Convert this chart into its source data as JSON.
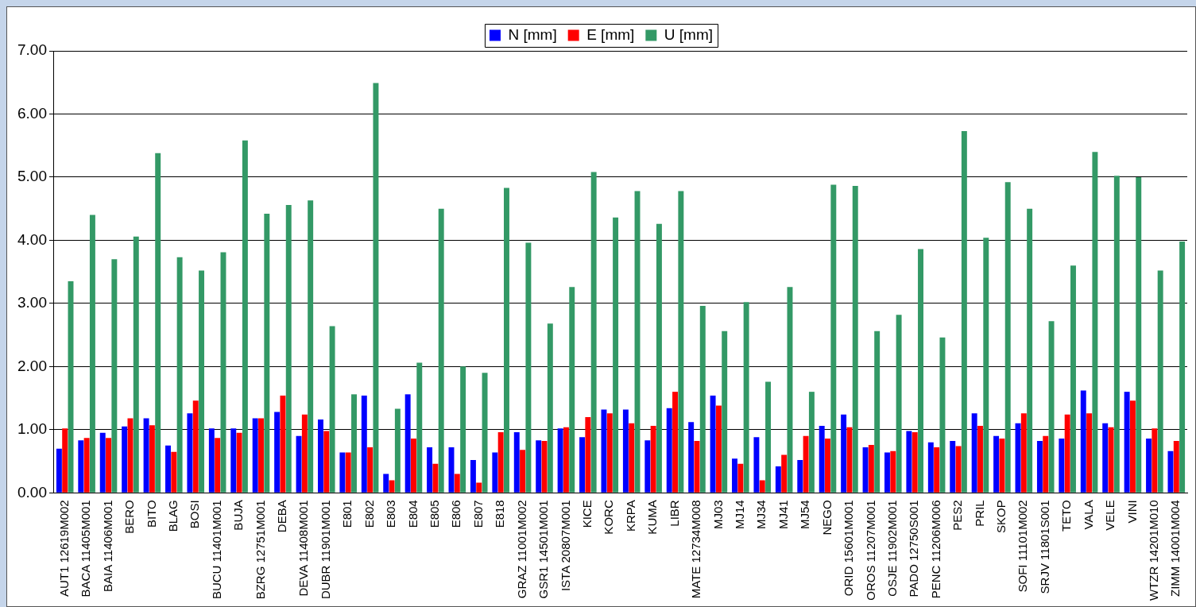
{
  "chart_data": {
    "type": "bar",
    "categories": [
      "AUT1 12619M002",
      "BACA 11405M001",
      "BAIA 11406M001",
      "BERO",
      "BITO",
      "BLAG",
      "BOSI",
      "BUCU 11401M001",
      "BUJA",
      "BZRG 12751M001",
      "DEBA",
      "DEVA 11408M001",
      "DUBR 11901M001",
      "E801",
      "E802",
      "E803",
      "E804",
      "E805",
      "E806",
      "E807",
      "E818",
      "GRAZ 11001M002",
      "GSR1 14501M001",
      "ISTA 20807M001",
      "KICE",
      "KORC",
      "KRPA",
      "KUMA",
      "LIBR",
      "MATE 12734M008",
      "MJ03",
      "MJ14",
      "MJ34",
      "MJ41",
      "MJ54",
      "NEGO",
      "ORID 15601M001",
      "OROS 11207M001",
      "OSJE 11902M001",
      "PADO 12750S001",
      "PENC 11206M006",
      "PES2",
      "PRIL",
      "SKOP",
      "SOFI 11101M002",
      "SRJV 11801S001",
      "TETO",
      "VALA",
      "VELE",
      "VINI",
      "WTZR 14201M010",
      "ZIMM 14001M004"
    ],
    "series": [
      {
        "name": "N [mm]",
        "color": "#0000ff",
        "values": [
          0.7,
          0.83,
          0.95,
          1.05,
          1.18,
          0.75,
          1.26,
          1.02,
          1.02,
          1.18,
          1.28,
          0.9,
          1.16,
          0.64,
          1.54,
          0.3,
          1.56,
          0.72,
          0.72,
          0.52,
          0.64,
          0.96,
          0.83,
          1.02,
          0.88,
          1.32,
          1.32,
          0.83,
          1.34,
          1.12,
          1.54,
          0.54,
          0.88,
          0.42,
          0.52,
          1.06,
          1.24,
          0.72,
          0.64,
          0.98,
          0.8,
          0.82,
          1.26,
          0.9,
          1.1,
          0.82,
          0.86,
          1.62,
          1.1,
          1.6,
          0.86,
          0.66
        ]
      },
      {
        "name": "E [mm]",
        "color": "#ff0000",
        "values": [
          1.02,
          0.87,
          0.87,
          1.18,
          1.07,
          0.65,
          1.46,
          0.87,
          0.95,
          1.18,
          1.54,
          1.24,
          0.98,
          0.64,
          0.72,
          0.2,
          0.86,
          0.46,
          0.3,
          0.16,
          0.96,
          0.68,
          0.82,
          1.04,
          1.2,
          1.26,
          1.1,
          1.06,
          1.6,
          0.82,
          1.38,
          0.46,
          0.2,
          0.6,
          0.9,
          0.86,
          1.04,
          0.76,
          0.66,
          0.96,
          0.72,
          0.74,
          1.06,
          0.86,
          1.26,
          0.9,
          1.24,
          1.26,
          1.04,
          1.46,
          1.02,
          0.82
        ]
      },
      {
        "name": "U [mm]",
        "color": "#339966",
        "values": [
          3.35,
          4.4,
          3.7,
          4.06,
          5.38,
          3.73,
          3.52,
          3.81,
          5.58,
          4.42,
          4.56,
          4.63,
          2.64,
          1.56,
          6.49,
          1.33,
          2.06,
          4.5,
          2.0,
          1.9,
          4.83,
          3.96,
          2.68,
          3.26,
          5.08,
          4.36,
          4.78,
          4.26,
          4.78,
          2.96,
          2.56,
          3.02,
          1.76,
          3.26,
          1.6,
          4.88,
          4.86,
          2.56,
          2.82,
          3.86,
          2.46,
          5.73,
          4.04,
          4.92,
          4.5,
          2.72,
          3.6,
          5.4,
          5.02,
          5.0,
          3.52,
          3.98
        ]
      }
    ],
    "ylim": [
      0,
      7
    ],
    "yticks": [
      {
        "value": 0,
        "label": "0.00"
      },
      {
        "value": 1,
        "label": "1.00"
      },
      {
        "value": 2,
        "label": "2.00"
      },
      {
        "value": 3,
        "label": "3.00"
      },
      {
        "value": 4,
        "label": "4.00"
      },
      {
        "value": 5,
        "label": "5.00"
      },
      {
        "value": 6,
        "label": "6.00"
      },
      {
        "value": 7,
        "label": "7.00"
      }
    ],
    "grid": "y",
    "legend": "top"
  }
}
